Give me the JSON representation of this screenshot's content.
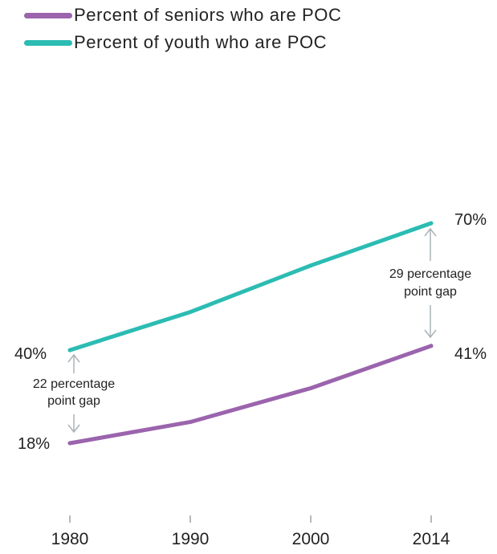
{
  "legend": [
    {
      "label": "Percent of seniors who are POC",
      "color": "#9b64ad"
    },
    {
      "label": "Percent of youth who are POC",
      "color": "#2bbcb3"
    }
  ],
  "annotations": {
    "start_gap": [
      "22 percentage",
      "point gap"
    ],
    "end_gap": [
      "29 percentage",
      "point gap"
    ]
  },
  "value_labels": {
    "youth_start": "40%",
    "youth_end": "70%",
    "seniors_start": "18%",
    "seniors_end": "41%"
  },
  "chart_data": {
    "type": "line",
    "x": [
      1980,
      1990,
      2000,
      2014
    ],
    "x_tick_labels": [
      "1980",
      "1990",
      "2000",
      "2014"
    ],
    "series": [
      {
        "name": "Percent of seniors who are POC",
        "color": "#9b64ad",
        "values": [
          18,
          23,
          31,
          41
        ]
      },
      {
        "name": "Percent of youth who are POC",
        "color": "#2bbcb3",
        "values": [
          40,
          49,
          60,
          70
        ]
      }
    ],
    "ylim": [
      0,
      100
    ],
    "grid": false,
    "legend_position": "top-left"
  }
}
